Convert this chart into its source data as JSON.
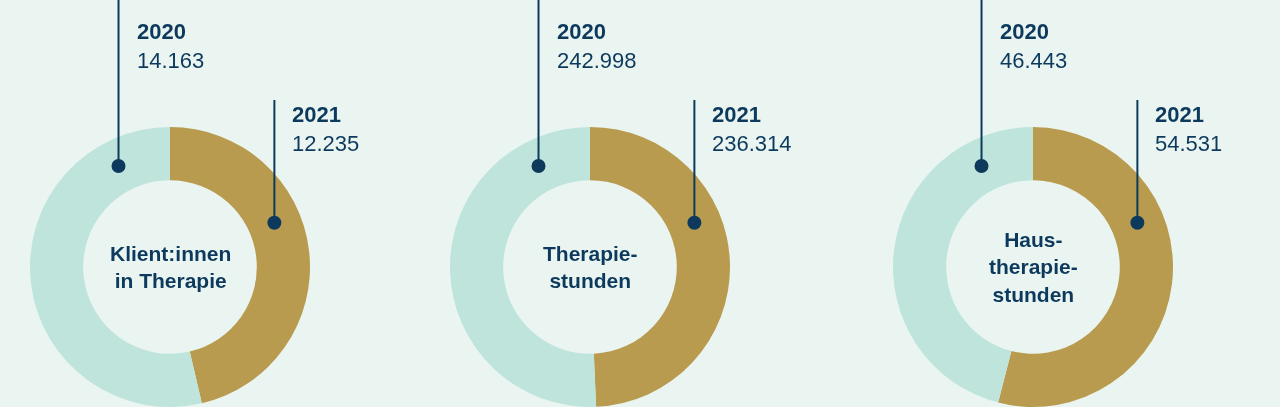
{
  "chart_data": [
    {
      "type": "donut",
      "title": "Klient:innen\nin Therapie",
      "categories": [
        "2020",
        "2021"
      ],
      "values": [
        14163,
        12235
      ],
      "value_labels": [
        "14.163",
        "12.235"
      ],
      "colors": [
        "#bfe4dc",
        "#b89b4e"
      ]
    },
    {
      "type": "donut",
      "title": "Therapie-\nstunden",
      "categories": [
        "2020",
        "2021"
      ],
      "values": [
        242998,
        236314
      ],
      "value_labels": [
        "242.998",
        "236.314"
      ],
      "colors": [
        "#bfe4dc",
        "#b89b4e"
      ]
    },
    {
      "type": "donut",
      "title": "Haus-\ntherapie-\nstunden",
      "categories": [
        "2020",
        "2021"
      ],
      "values": [
        46443,
        54531
      ],
      "value_labels": [
        "46.443",
        "54.531"
      ],
      "colors": [
        "#bfe4dc",
        "#b89b4e"
      ]
    }
  ]
}
